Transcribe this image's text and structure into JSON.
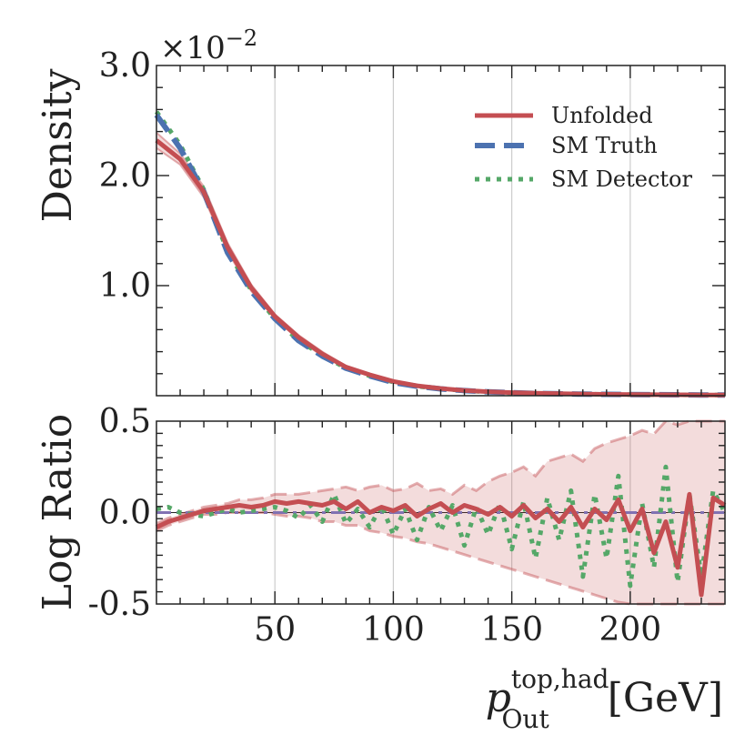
{
  "chart_data": [
    {
      "type": "line",
      "panel": "main",
      "ylabel": "Density",
      "y_multiplier_label": {
        "base": "×10",
        "exponent": "−2"
      },
      "xlim": [
        0,
        240
      ],
      "ylim": [
        0,
        3.0
      ],
      "yticks": [
        {
          "value": 1.0,
          "label": "1.0"
        },
        {
          "value": 2.0,
          "label": "2.0"
        },
        {
          "value": 3.0,
          "label": "3.0"
        }
      ],
      "xgrid": [
        50,
        100,
        150,
        200
      ],
      "legend": {
        "position": "top-right",
        "entries": [
          "Unfolded",
          "SM Truth",
          "SM Detector"
        ]
      },
      "x": [
        0,
        10,
        20,
        30,
        40,
        50,
        60,
        70,
        80,
        90,
        100,
        110,
        120,
        130,
        140,
        150,
        160,
        170,
        180,
        190,
        200,
        210,
        220,
        230,
        240
      ],
      "series": [
        {
          "name": "Unfolded",
          "color": "#c44e52",
          "style": "solid",
          "values": [
            2.32,
            2.15,
            1.85,
            1.35,
            0.98,
            0.72,
            0.53,
            0.38,
            0.26,
            0.19,
            0.13,
            0.09,
            0.065,
            0.048,
            0.036,
            0.028,
            0.022,
            0.018,
            0.015,
            0.012,
            0.01,
            0.009,
            0.008,
            0.007,
            0.006
          ],
          "band_lower": [
            2.25,
            2.1,
            1.8,
            1.31,
            0.95,
            0.7,
            0.51,
            0.36,
            0.25,
            0.18,
            0.12,
            0.083,
            0.058,
            0.041,
            0.029,
            0.021,
            0.015,
            0.011,
            0.008,
            0.006,
            0.005,
            0.004,
            0.0035,
            0.003,
            0.0025
          ],
          "band_upper": [
            2.39,
            2.2,
            1.9,
            1.39,
            1.01,
            0.74,
            0.55,
            0.4,
            0.27,
            0.2,
            0.14,
            0.097,
            0.072,
            0.055,
            0.043,
            0.035,
            0.029,
            0.025,
            0.022,
            0.02,
            0.018,
            0.016,
            0.014,
            0.013,
            0.012
          ]
        },
        {
          "name": "SM Truth",
          "color": "#4c72b0",
          "style": "dashed",
          "values": [
            2.55,
            2.25,
            1.85,
            1.3,
            0.95,
            0.7,
            0.5,
            0.36,
            0.25,
            0.18,
            0.12,
            0.085,
            0.062,
            0.046,
            0.035,
            0.027,
            0.021,
            0.017,
            0.014,
            0.012,
            0.01,
            0.009,
            0.008,
            0.007,
            0.006
          ]
        },
        {
          "name": "SM Detector",
          "color": "#55a868",
          "style": "dotted",
          "values": [
            2.58,
            2.28,
            1.87,
            1.31,
            0.96,
            0.7,
            0.5,
            0.37,
            0.25,
            0.18,
            0.125,
            0.086,
            0.063,
            0.046,
            0.034,
            0.026,
            0.021,
            0.017,
            0.014,
            0.012,
            0.01,
            0.009,
            0.008,
            0.007,
            0.006
          ]
        }
      ]
    },
    {
      "type": "line",
      "panel": "ratio",
      "ylabel": "Log Ratio",
      "xlabel": "p_Out^(top,had) [GeV]",
      "xlabel_parts": {
        "main": "p",
        "sup": "top,had",
        "sub": "Out",
        "unit": "[GeV]"
      },
      "xlim": [
        0,
        240
      ],
      "ylim": [
        -0.5,
        0.5
      ],
      "xticks": [
        {
          "value": 50,
          "label": "50"
        },
        {
          "value": 100,
          "label": "100"
        },
        {
          "value": 150,
          "label": "150"
        },
        {
          "value": 200,
          "label": "200"
        }
      ],
      "yticks": [
        {
          "value": -0.5,
          "label": "-0.5"
        },
        {
          "value": 0.0,
          "label": "0.0"
        },
        {
          "value": 0.5,
          "label": "0.5"
        }
      ],
      "reference_line": {
        "value": 0.0,
        "color": "#8172b2",
        "style": "dashdot"
      },
      "x": [
        0,
        5,
        10,
        15,
        20,
        25,
        30,
        35,
        40,
        45,
        50,
        55,
        60,
        65,
        70,
        75,
        80,
        85,
        90,
        95,
        100,
        105,
        110,
        115,
        120,
        125,
        130,
        135,
        140,
        145,
        150,
        155,
        160,
        165,
        170,
        175,
        180,
        185,
        190,
        195,
        200,
        205,
        210,
        215,
        220,
        225,
        230,
        235,
        240
      ],
      "series": [
        {
          "name": "Unfolded",
          "color": "#c44e52",
          "style": "solid",
          "values": [
            -0.08,
            -0.05,
            -0.03,
            -0.01,
            0.01,
            0.02,
            0.03,
            0.04,
            0.03,
            0.04,
            0.06,
            0.05,
            0.06,
            0.05,
            0.04,
            0.06,
            0.02,
            0.06,
            0.0,
            0.03,
            0.01,
            0.04,
            -0.02,
            0.02,
            0.05,
            0.0,
            0.04,
            0.02,
            -0.01,
            0.03,
            -0.02,
            0.04,
            -0.03,
            0.02,
            -0.05,
            0.03,
            -0.08,
            0.02,
            -0.04,
            0.07,
            -0.1,
            0.02,
            -0.22,
            -0.05,
            -0.3,
            0.1,
            -0.45,
            0.08,
            0.04
          ],
          "band_lower": [
            -0.1,
            -0.07,
            -0.05,
            -0.03,
            -0.01,
            -0.01,
            0.0,
            0.0,
            0.0,
            0.0,
            -0.01,
            -0.02,
            -0.02,
            -0.03,
            -0.05,
            -0.05,
            -0.07,
            -0.07,
            -0.1,
            -0.11,
            -0.13,
            -0.14,
            -0.16,
            -0.17,
            -0.19,
            -0.21,
            -0.23,
            -0.25,
            -0.27,
            -0.29,
            -0.31,
            -0.33,
            -0.35,
            -0.37,
            -0.39,
            -0.41,
            -0.43,
            -0.45,
            -0.47,
            -0.49,
            -0.5,
            -0.5,
            -0.5,
            -0.5,
            -0.5,
            -0.5,
            -0.5,
            -0.5,
            -0.5
          ],
          "band_upper": [
            -0.06,
            -0.03,
            -0.01,
            0.01,
            0.03,
            0.04,
            0.05,
            0.07,
            0.07,
            0.08,
            0.1,
            0.1,
            0.1,
            0.11,
            0.12,
            0.13,
            0.14,
            0.12,
            0.14,
            0.15,
            0.12,
            0.13,
            0.16,
            0.12,
            0.13,
            0.1,
            0.15,
            0.12,
            0.17,
            0.2,
            0.22,
            0.25,
            0.2,
            0.28,
            0.3,
            0.32,
            0.28,
            0.35,
            0.38,
            0.4,
            0.42,
            0.45,
            0.43,
            0.5,
            0.48,
            0.5,
            0.5,
            0.5,
            0.5
          ]
        },
        {
          "name": "SM Detector",
          "color": "#55a868",
          "style": "dotted",
          "values": [
            0.02,
            0.03,
            0.0,
            -0.01,
            -0.02,
            0.0,
            0.02,
            0.0,
            0.01,
            0.02,
            0.03,
            0.01,
            -0.03,
            0.04,
            -0.05,
            0.1,
            -0.06,
            0.02,
            -0.08,
            0.04,
            -0.12,
            0.02,
            -0.15,
            0.03,
            -0.1,
            0.04,
            -0.18,
            0.03,
            -0.12,
            0.05,
            -0.2,
            0.06,
            -0.25,
            0.08,
            -0.15,
            0.12,
            -0.35,
            0.1,
            -0.25,
            0.2,
            -0.4,
            0.05,
            -0.3,
            0.25,
            -0.38,
            0.1,
            -0.35,
            0.12,
            0.0
          ]
        },
        {
          "name": "SM Truth",
          "color": "#8172b2",
          "style": "dashdot",
          "values": [
            0,
            0,
            0,
            0,
            0,
            0,
            0,
            0,
            0,
            0,
            0,
            0,
            0,
            0,
            0,
            0,
            0,
            0,
            0,
            0,
            0,
            0,
            0,
            0,
            0,
            0,
            0,
            0,
            0,
            0,
            0,
            0,
            0,
            0,
            0,
            0,
            0,
            0,
            0,
            0,
            0,
            0,
            0,
            0,
            0,
            0,
            0,
            0,
            0
          ]
        }
      ]
    }
  ]
}
